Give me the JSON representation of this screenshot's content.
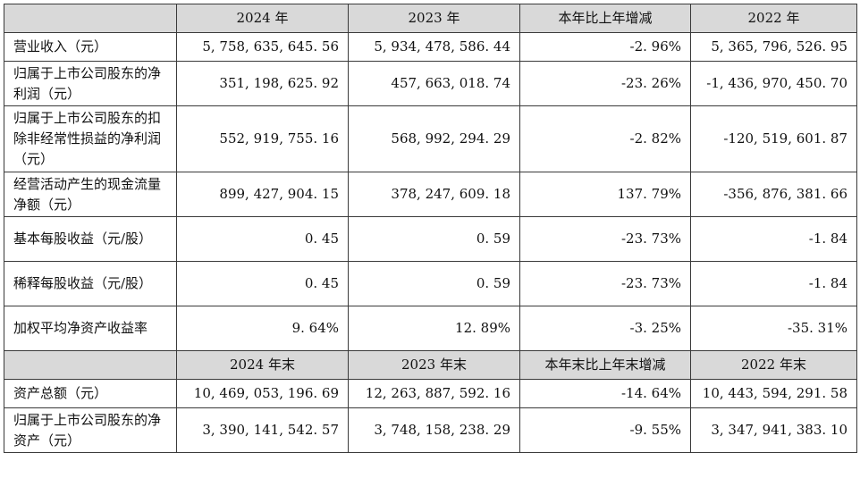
{
  "header1": {
    "corner": "",
    "col1": "2024 年",
    "col2": "2023 年",
    "col3": "本年比上年增减",
    "col4": "2022 年"
  },
  "rows1": [
    {
      "label": "营业收入（元）",
      "v1": "5, 758, 635, 645. 56",
      "v2": "5, 934, 478, 586. 44",
      "v3": "-2. 96%",
      "v4": "5, 365, 796, 526. 95"
    },
    {
      "label": "归属于上市公司股东的净利润（元）",
      "v1": "351, 198, 625. 92",
      "v2": "457, 663, 018. 74",
      "v3": "-23. 26%",
      "v4": "-1, 436, 970, 450. 70"
    },
    {
      "label": "归属于上市公司股东的扣除非经常性损益的净利润（元）",
      "v1": "552, 919, 755. 16",
      "v2": "568, 992, 294. 29",
      "v3": "-2. 82%",
      "v4": "-120, 519, 601. 87"
    },
    {
      "label": "经营活动产生的现金流量净额（元）",
      "v1": "899, 427, 904. 15",
      "v2": "378, 247, 609. 18",
      "v3": "137. 79%",
      "v4": "-356, 876, 381. 66"
    },
    {
      "label": "基本每股收益（元/股）",
      "v1": "0. 45",
      "v2": "0. 59",
      "v3": "-23. 73%",
      "v4": "-1. 84"
    },
    {
      "label": "稀释每股收益（元/股）",
      "v1": "0. 45",
      "v2": "0. 59",
      "v3": "-23. 73%",
      "v4": "-1. 84"
    },
    {
      "label": "加权平均净资产收益率",
      "v1": "9. 64%",
      "v2": "12. 89%",
      "v3": "-3. 25%",
      "v4": "-35. 31%"
    }
  ],
  "header2": {
    "corner": "",
    "col1": "2024 年末",
    "col2": "2023 年末",
    "col3": "本年末比上年末增减",
    "col4": "2022 年末"
  },
  "rows2": [
    {
      "label": "资产总额（元）",
      "v1": "10, 469, 053, 196. 69",
      "v2": "12, 263, 887, 592. 16",
      "v3": "-14. 64%",
      "v4": "10, 443, 594, 291. 58"
    },
    {
      "label": "归属于上市公司股东的净资产（元）",
      "v1": "3, 390, 141, 542. 57",
      "v2": "3, 748, 158, 238. 29",
      "v3": "-9. 55%",
      "v4": "3, 347, 941, 383. 10"
    }
  ]
}
